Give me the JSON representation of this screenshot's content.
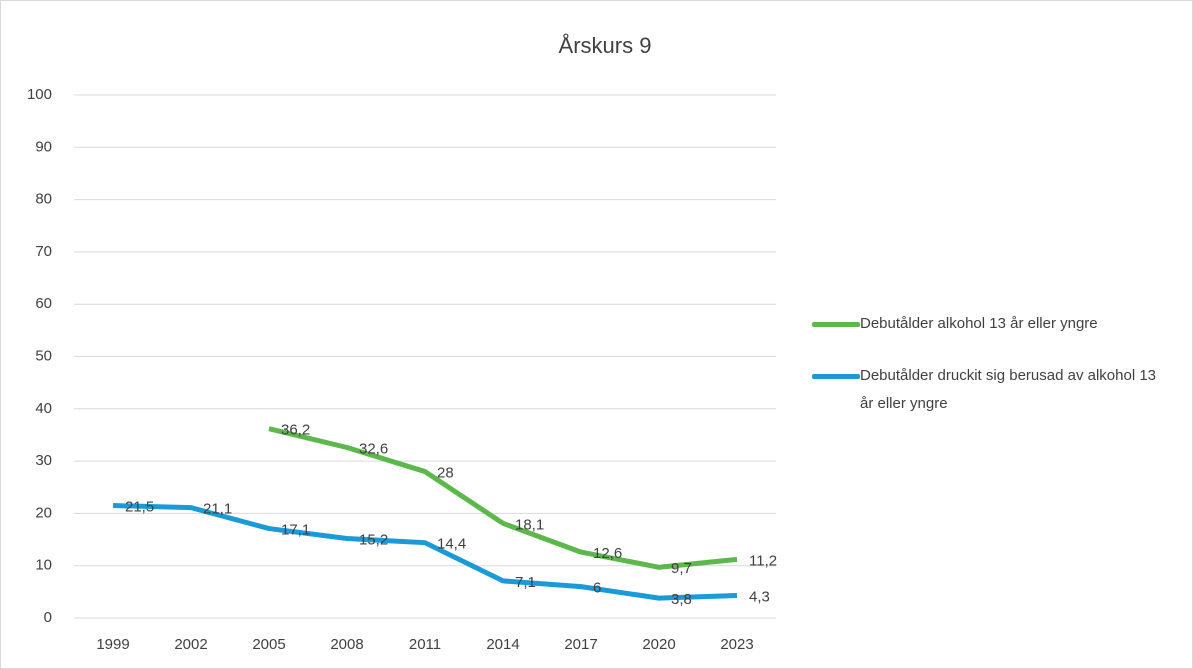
{
  "chart_data": {
    "type": "line",
    "title": "Årskurs 9",
    "categories": [
      "1999",
      "2002",
      "2005",
      "2008",
      "2011",
      "2014",
      "2017",
      "2020",
      "2023"
    ],
    "series": [
      {
        "name": "Debutålder alkohol 13 år eller yngre",
        "color": "#5cb84a",
        "values": [
          null,
          null,
          36.2,
          32.6,
          28,
          18.1,
          12.6,
          9.7,
          11.2
        ],
        "value_labels": [
          null,
          null,
          "36,2",
          "32,6",
          "28",
          "18,1",
          "12,6",
          "9,7",
          "11,2"
        ]
      },
      {
        "name": "Debutålder druckit sig berusad av alkohol 13 år eller yngre",
        "color": "#1a9bd7",
        "values": [
          21.5,
          21.1,
          17.1,
          15.2,
          14.4,
          7.1,
          6,
          3.8,
          4.3
        ],
        "value_labels": [
          "21,5",
          "21,1",
          "17,1",
          "15,2",
          "14,4",
          "7,1",
          "6",
          "3,8",
          "4,3"
        ]
      }
    ],
    "ylim": [
      0,
      100
    ],
    "yticks": [
      0,
      10,
      20,
      30,
      40,
      50,
      60,
      70,
      80,
      90,
      100
    ],
    "grid": true,
    "legend": "right"
  }
}
